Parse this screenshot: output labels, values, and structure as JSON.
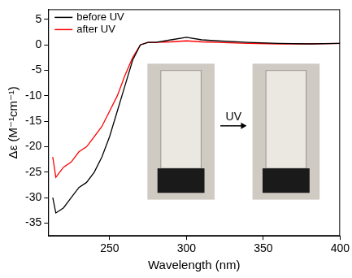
{
  "chart_data": {
    "type": "line",
    "x_label": "Wavelength (nm)",
    "y_label": "Δε (M⁻¹cm⁻¹)",
    "annotation": "UV",
    "legend": "upper left",
    "grid": false,
    "xlim": [
      210,
      400
    ],
    "xticks": [
      250,
      300,
      350,
      400
    ],
    "ylim": [
      -37.5,
      7
    ],
    "yticks": [
      -35,
      -30,
      -25,
      -20,
      -15,
      -10,
      -5,
      0,
      5
    ],
    "x": [
      213,
      215,
      220,
      225,
      230,
      235,
      240,
      245,
      250,
      255,
      260,
      265,
      270,
      275,
      280,
      290,
      300,
      310,
      320,
      340,
      360,
      380,
      400
    ],
    "series": [
      {
        "name": "before UV",
        "color": "#000000",
        "values": [
          -30,
          -33,
          -32,
          -30,
          -28,
          -27,
          -25,
          -22,
          -18,
          -13,
          -8,
          -3,
          0,
          0.5,
          0.5,
          1,
          1.5,
          1,
          0.8,
          0.5,
          0.3,
          0.2,
          0.3
        ]
      },
      {
        "name": "after UV",
        "color": "#ff0000",
        "values": [
          -22,
          -26,
          -24,
          -23,
          -21,
          -20,
          -18,
          -16,
          -13,
          -10,
          -6,
          -2.5,
          0,
          0.5,
          0.5,
          0.6,
          0.8,
          0.6,
          0.5,
          0.3,
          0.2,
          0.2,
          0.3
        ]
      }
    ]
  }
}
